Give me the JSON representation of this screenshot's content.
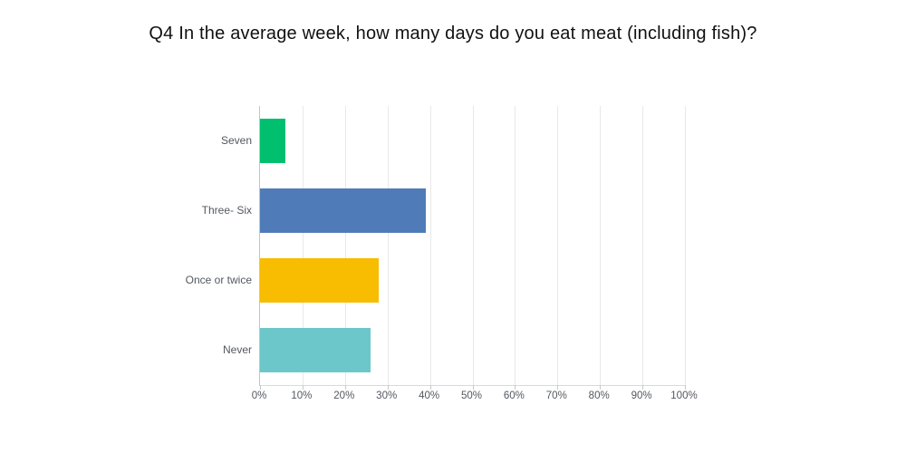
{
  "title": "Q4 In the average week, how many days do you eat meat (including fish)?",
  "chart_data": {
    "type": "bar",
    "orientation": "horizontal",
    "title": "Q4 In the average week, how many days do you eat meat (including fish)?",
    "categories": [
      "Seven",
      "Three- Six",
      "Once or twice",
      "Never"
    ],
    "values": [
      6,
      39,
      28,
      26
    ],
    "value_unit": "%",
    "bar_colors": [
      "#00BF6F",
      "#4F7CB8",
      "#F8BC01",
      "#6CC7CB"
    ],
    "x_ticks": [
      "0%",
      "10%",
      "20%",
      "30%",
      "40%",
      "50%",
      "60%",
      "70%",
      "80%",
      "90%",
      "100%"
    ],
    "x_tick_values": [
      0,
      10,
      20,
      30,
      40,
      50,
      60,
      70,
      80,
      90,
      100
    ],
    "xlim": [
      0,
      100
    ],
    "xlabel": "",
    "ylabel": "",
    "grid": "vertical",
    "legend": "none"
  },
  "colors": {
    "background": "#ffffff",
    "gridline": "#e8e8e8",
    "axis_line": "#c4c4c4",
    "tick_mark": "#c9c9c9",
    "label_text": "#53585f",
    "title_text": "#111111"
  }
}
